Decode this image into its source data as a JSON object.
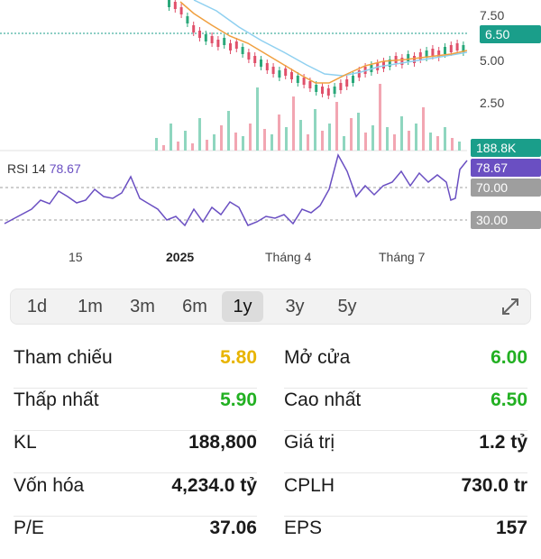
{
  "chart": {
    "price_axis": [
      "7.50",
      "5.00",
      "2.50"
    ],
    "current_price": "6.50",
    "volume_tag": "188.8K",
    "rsi": {
      "label": "RSI 14",
      "value": "78.67",
      "upper": "70.00",
      "lower": "30.00"
    },
    "x_ticks": [
      "15",
      "2025",
      "Tháng 4",
      "Tháng 7"
    ],
    "colors": {
      "price_tag": "#1a9e8a",
      "volume_tag": "#1a9e8a",
      "rsi": "#6a4fc2",
      "rsi_band": "#9e9e9e",
      "ma_short": "#f0a040",
      "ma_long": "#8fd0f0",
      "up": "#2aa87a",
      "down": "#e0506a"
    }
  },
  "range_tabs": [
    "1d",
    "1m",
    "3m",
    "6m",
    "1y",
    "3y",
    "5y"
  ],
  "active_range": "1y",
  "expand_icon": "expand-icon",
  "stats": {
    "left": [
      {
        "label": "Tham chiếu",
        "value": "5.80",
        "color": "#e8b400"
      },
      {
        "label": "Thấp nhất",
        "value": "5.90",
        "color": "#22b022"
      },
      {
        "label": "KL",
        "value": "188,800",
        "color": "#1a1a1a"
      },
      {
        "label": "Vốn hóa",
        "value": "4,234.0 tỷ",
        "color": "#1a1a1a"
      },
      {
        "label": "P/E",
        "value": "37.06",
        "color": "#1a1a1a"
      }
    ],
    "right": [
      {
        "label": "Mở cửa",
        "value": "6.00",
        "color": "#22b022"
      },
      {
        "label": "Cao nhất",
        "value": "6.50",
        "color": "#22b022"
      },
      {
        "label": "Giá trị",
        "value": "1.2 tỷ",
        "color": "#1a1a1a"
      },
      {
        "label": "CPLH",
        "value": "730.0 tr",
        "color": "#1a1a1a"
      },
      {
        "label": "EPS",
        "value": "157",
        "color": "#1a1a1a"
      }
    ]
  }
}
